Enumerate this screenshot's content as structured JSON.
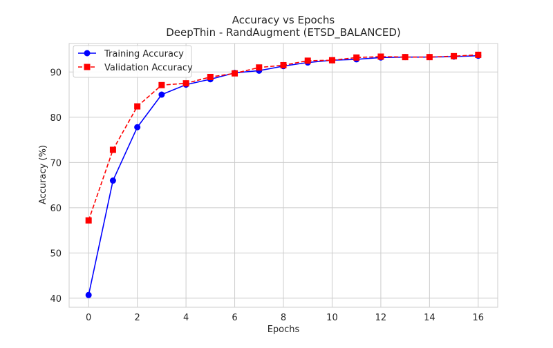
{
  "chart_data": {
    "type": "line",
    "title": "Accuracy vs Epochs",
    "subtitle": "DeepThin - RandAugment (ETSD_BALANCED)",
    "xlabel": "Epochs",
    "ylabel": "Accuracy (%)",
    "xlim": [
      -0.8,
      16.8
    ],
    "ylim": [
      38,
      96.3
    ],
    "xticks": [
      0,
      2,
      4,
      6,
      8,
      10,
      12,
      14,
      16
    ],
    "yticks": [
      40,
      50,
      60,
      70,
      80,
      90
    ],
    "grid": true,
    "legend_position": "top-left",
    "x": [
      0,
      1,
      2,
      3,
      4,
      5,
      6,
      7,
      8,
      9,
      10,
      11,
      12,
      13,
      14,
      15,
      16
    ],
    "series": [
      {
        "name": "Training Accuracy",
        "color": "#0000ff",
        "line_style": "solid",
        "marker": "circle",
        "values": [
          40.7,
          66.0,
          77.8,
          85.0,
          87.2,
          88.4,
          89.8,
          90.3,
          91.3,
          92.1,
          92.6,
          92.8,
          93.2,
          93.3,
          93.3,
          93.4,
          93.6
        ]
      },
      {
        "name": "Validation Accuracy",
        "color": "#ff0000",
        "line_style": "dashed",
        "marker": "square",
        "values": [
          57.2,
          72.8,
          82.4,
          87.1,
          87.5,
          88.9,
          89.7,
          91.0,
          91.5,
          92.5,
          92.6,
          93.2,
          93.4,
          93.3,
          93.3,
          93.5,
          93.8
        ]
      }
    ]
  }
}
